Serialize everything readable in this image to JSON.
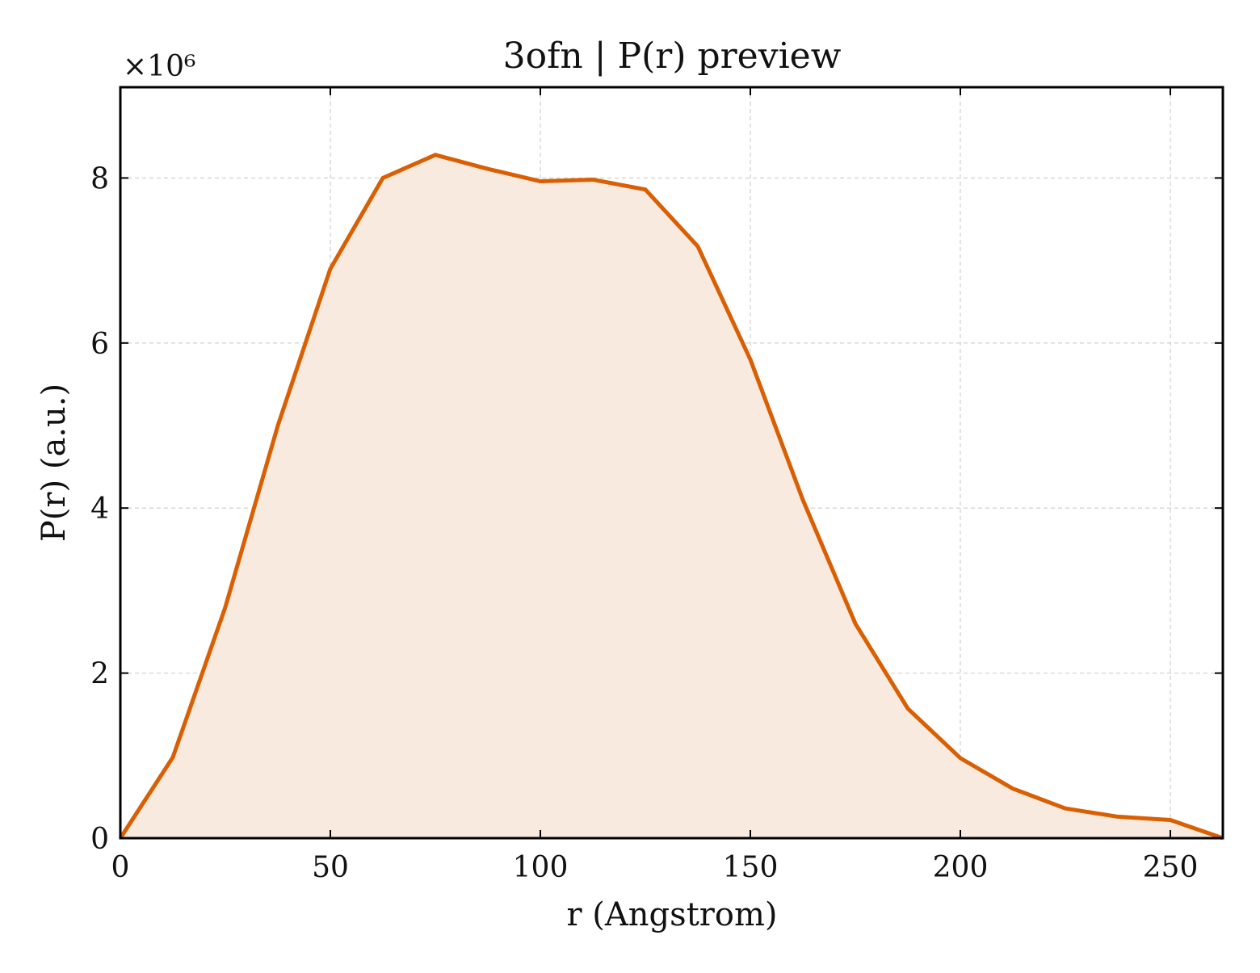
{
  "chart_data": {
    "type": "area",
    "title": "3ofn | P(r) preview",
    "xlabel": "r (Angstrom)",
    "ylabel": "P(r) (a.u.)",
    "y_multiplier_label": "×10⁶",
    "y_multiplier": 1000000,
    "xlim": [
      0,
      262.5
    ],
    "ylim": [
      0,
      9.1
    ],
    "x_ticks": [
      0,
      50,
      100,
      150,
      200,
      250
    ],
    "y_ticks": [
      0,
      2,
      4,
      6,
      8
    ],
    "grid": true,
    "line_color": "#d95f02",
    "fill_color": "#f9eadf",
    "series": [
      {
        "x": [
          0,
          12.5,
          25,
          37.5,
          50,
          62.5,
          75,
          87.5,
          100,
          112.5,
          125,
          137.5,
          150,
          162.5,
          175,
          187.5,
          200,
          212.5,
          225,
          237.5,
          250,
          262.5
        ],
        "y": [
          0,
          0.98,
          2.8,
          5.0,
          6.9,
          8.0,
          8.28,
          8.11,
          7.96,
          7.98,
          7.86,
          7.17,
          5.8,
          4.1,
          2.6,
          1.57,
          0.97,
          0.6,
          0.36,
          0.26,
          0.22,
          0.0
        ]
      }
    ]
  }
}
